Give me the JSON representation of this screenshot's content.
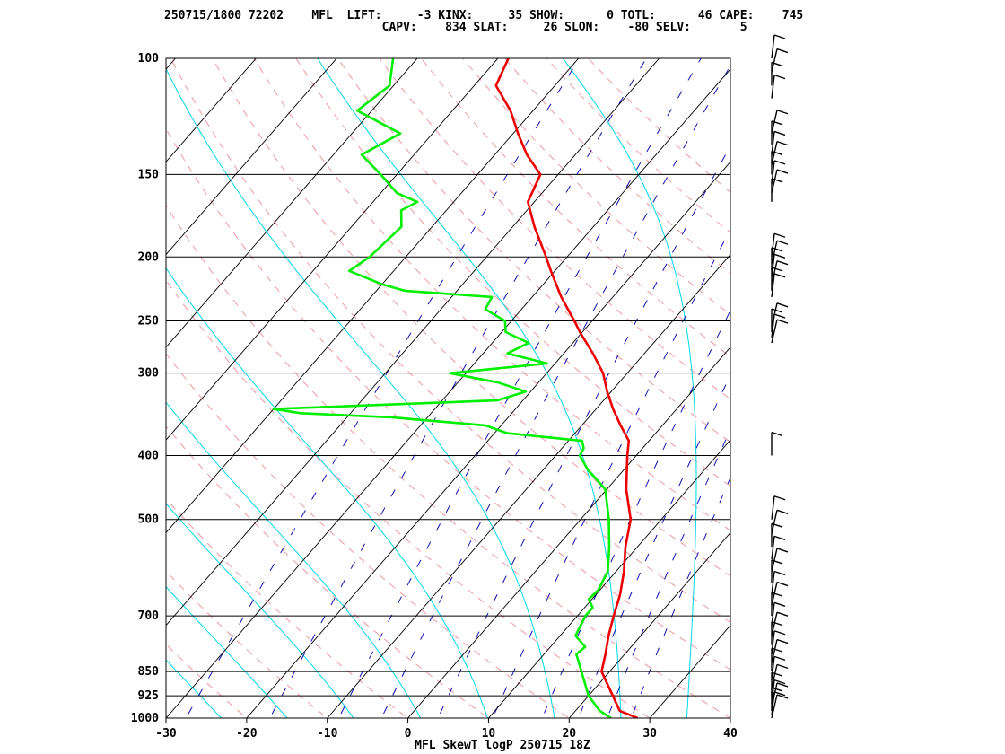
{
  "header": {
    "line1": "250715/1800 72202    MFL  LIFT:     -3 KINX:     35 SHOW:      0 TOTL:      46 CAPE:    745",
    "line2": "                               CAPV:    834 SLAT:     26 SLON:    -80 SELV:       5"
  },
  "chart_data": {
    "type": "line",
    "title": "MFL SkewT logP 250715 18Z",
    "xlabel": "",
    "ylabel": "",
    "xlim": [
      -30,
      40
    ],
    "ylim": [
      1000,
      100
    ],
    "y_scale": "log",
    "x_ticks": [
      "-30",
      "-20",
      "-10",
      "0",
      "10",
      "20",
      "30",
      "40"
    ],
    "y_ticks": [
      "1000",
      "925",
      "850",
      "700",
      "500",
      "400",
      "300",
      "250",
      "200",
      "150",
      "100"
    ],
    "series": [
      {
        "name": "",
        "color": "#ee0000",
        "points": [
          [
            1000,
            28.5
          ],
          [
            975,
            25.5
          ],
          [
            925,
            23
          ],
          [
            850,
            19
          ],
          [
            800,
            17.6
          ],
          [
            750,
            16
          ],
          [
            700,
            14.5
          ],
          [
            650,
            13.0
          ],
          [
            600,
            11.0
          ],
          [
            550,
            8.5
          ],
          [
            500,
            6.2
          ],
          [
            450,
            2.4
          ],
          [
            400,
            -1.1
          ],
          [
            380,
            -2.5
          ],
          [
            360,
            -5.2
          ],
          [
            340,
            -7.9
          ],
          [
            320,
            -10.5
          ],
          [
            300,
            -13.0
          ],
          [
            280,
            -16.4
          ],
          [
            260,
            -20.3
          ],
          [
            250,
            -22.2
          ],
          [
            230,
            -26.4
          ],
          [
            210,
            -30.5
          ],
          [
            200,
            -32.6
          ],
          [
            180,
            -37.3
          ],
          [
            165,
            -40.8
          ],
          [
            150,
            -42.2
          ],
          [
            140,
            -46.0
          ],
          [
            130,
            -49.4
          ],
          [
            120,
            -52.8
          ],
          [
            110,
            -57.3
          ],
          [
            100,
            -58.7
          ]
        ]
      },
      {
        "name": "",
        "color": "#00ee00",
        "points": [
          [
            1000,
            25.2
          ],
          [
            975,
            23.0
          ],
          [
            925,
            20.0
          ],
          [
            850,
            16.5
          ],
          [
            800,
            14.0
          ],
          [
            780,
            14.3
          ],
          [
            750,
            11.9
          ],
          [
            700,
            11.0
          ],
          [
            680,
            11.0
          ],
          [
            660,
            9.6
          ],
          [
            640,
            9.8
          ],
          [
            600,
            9.0
          ],
          [
            550,
            6.5
          ],
          [
            500,
            3.5
          ],
          [
            450,
            -0.2
          ],
          [
            420,
            -4.5
          ],
          [
            400,
            -7.0
          ],
          [
            390,
            -7.3
          ],
          [
            380,
            -8.3
          ],
          [
            370,
            -18.4
          ],
          [
            360,
            -22.0
          ],
          [
            350,
            -34.5
          ],
          [
            345,
            -46.2
          ],
          [
            340,
            -50.0
          ],
          [
            330,
            -23.2
          ],
          [
            320,
            -20.6
          ],
          [
            310,
            -25.0
          ],
          [
            300,
            -32.0
          ],
          [
            290,
            -21.0
          ],
          [
            280,
            -27.0
          ],
          [
            270,
            -25.5
          ],
          [
            260,
            -29.5
          ],
          [
            250,
            -30.8
          ],
          [
            240,
            -34.5
          ],
          [
            230,
            -35.0
          ],
          [
            225,
            -46.5
          ],
          [
            220,
            -50.0
          ],
          [
            210,
            -55.5
          ],
          [
            200,
            -54.5
          ],
          [
            180,
            -53.8
          ],
          [
            170,
            -55.6
          ],
          [
            165,
            -54.5
          ],
          [
            160,
            -58.0
          ],
          [
            150,
            -62.0
          ],
          [
            140,
            -66.5
          ],
          [
            130,
            -64.0
          ],
          [
            120,
            -71.8
          ],
          [
            110,
            -70.5
          ],
          [
            100,
            -73.0
          ]
        ]
      }
    ],
    "wind_barbs_hpa": [
      1000,
      990,
      975,
      960,
      950,
      925,
      900,
      875,
      850,
      825,
      800,
      775,
      750,
      725,
      700,
      675,
      650,
      625,
      600,
      575,
      550,
      525,
      500,
      400,
      270,
      265,
      260,
      255,
      230,
      225,
      220,
      215,
      210,
      205,
      200,
      165,
      160,
      155,
      150,
      145,
      140,
      135,
      130,
      115,
      110,
      105,
      100
    ]
  }
}
